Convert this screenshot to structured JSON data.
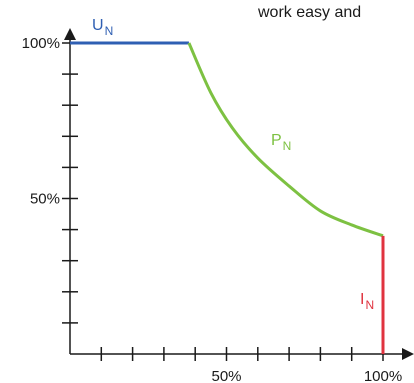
{
  "header_snippet": "work easy and",
  "chart_data": {
    "type": "line",
    "title": "",
    "xlabel": "",
    "ylabel": "",
    "xlim": [
      0,
      100
    ],
    "ylim": [
      0,
      100
    ],
    "x_ticks": [
      10,
      20,
      30,
      40,
      50,
      60,
      70,
      80,
      90,
      100
    ],
    "x_tick_labels": [
      {
        "x": 50,
        "text": "50%"
      },
      {
        "x": 100,
        "text": "100%"
      }
    ],
    "y_ticks": [
      10,
      20,
      30,
      40,
      50,
      60,
      70,
      80,
      90,
      100
    ],
    "y_tick_labels": [
      {
        "y": 50,
        "text": "50%"
      },
      {
        "y": 100,
        "text": "100%"
      }
    ],
    "grid": false,
    "series": [
      {
        "key": "un",
        "label": "U",
        "label_sub": "N",
        "color": "#2f5fb3",
        "points": [
          [
            0,
            100
          ],
          [
            38,
            100
          ]
        ]
      },
      {
        "key": "pn",
        "label": "P",
        "label_sub": "N",
        "color": "#7dc142",
        "points": [
          [
            38,
            100
          ],
          [
            45,
            84
          ],
          [
            52,
            72.5
          ],
          [
            60,
            63
          ],
          [
            70,
            54
          ],
          [
            80,
            46
          ],
          [
            90,
            41.5
          ],
          [
            100,
            38
          ]
        ]
      },
      {
        "key": "in",
        "label": "I",
        "label_sub": "N",
        "color": "#e0333f",
        "points": [
          [
            100,
            38
          ],
          [
            100,
            0
          ]
        ]
      }
    ]
  }
}
